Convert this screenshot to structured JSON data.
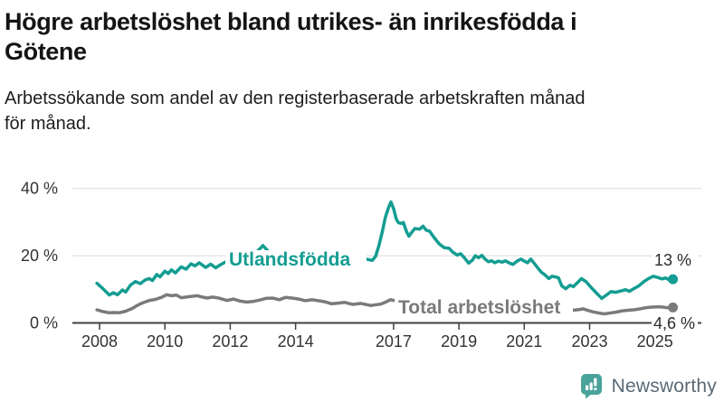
{
  "header": {
    "title_lines": [
      "Högre arbetslöshet bland utrikes- än inrikesfödda i",
      "Götene"
    ],
    "subtitle_lines": [
      "Arbetssökande som andel av den registerbaserade arbetskraften månad",
      "för månad."
    ]
  },
  "colors": {
    "foreign_line": "#149d92",
    "total_line": "#7a7a7a",
    "axis": "#404040",
    "grid": "#d9d9d9",
    "tick_label": "#333333",
    "value_label": "#2b2b2b",
    "logo_teal": "#4aa39b",
    "brand_text": "#596a76"
  },
  "chart_data": {
    "type": "line",
    "title": "Högre arbetslöshet bland utrikes- än inrikesfödda i Götene",
    "subtitle": "Arbetssökande som andel av den registerbaserade arbetskraften månad för månad.",
    "xlabel": "",
    "ylabel": "",
    "y_unit": "percent",
    "x_unit": "year (decimal = monthly)",
    "ylim": [
      0,
      40
    ],
    "xlim": [
      2007.9,
      2025.7
    ],
    "grid": "horizontal",
    "legend_position": "inline-labels",
    "y_ticks": [
      {
        "value": 0,
        "label": "0 %"
      },
      {
        "value": 20,
        "label": "20 %"
      },
      {
        "value": 40,
        "label": "40 %"
      }
    ],
    "x_ticks": [
      {
        "year": 2008,
        "label": "2008"
      },
      {
        "year": 2010,
        "label": "2010"
      },
      {
        "year": 2012,
        "label": "2012"
      },
      {
        "year": 2014,
        "label": "2014"
      },
      {
        "year": 2017,
        "label": "2017"
      },
      {
        "year": 2019,
        "label": "2019"
      },
      {
        "year": 2021,
        "label": "2021"
      },
      {
        "year": 2023,
        "label": "2023"
      },
      {
        "year": 2025,
        "label": "2025"
      }
    ],
    "series": [
      {
        "name": "Utlandsfödda",
        "color": "#149d92",
        "end_label": "13 %",
        "last_value": 13,
        "points": [
          [
            2007.92,
            11.8
          ],
          [
            2008.08,
            10.4
          ],
          [
            2008.3,
            8.3
          ],
          [
            2008.42,
            9.0
          ],
          [
            2008.55,
            8.4
          ],
          [
            2008.7,
            9.8
          ],
          [
            2008.8,
            9.2
          ],
          [
            2008.95,
            11.3
          ],
          [
            2009.1,
            12.3
          ],
          [
            2009.25,
            11.7
          ],
          [
            2009.4,
            12.8
          ],
          [
            2009.52,
            13.2
          ],
          [
            2009.62,
            12.6
          ],
          [
            2009.75,
            14.4
          ],
          [
            2009.85,
            13.7
          ],
          [
            2010.0,
            15.4
          ],
          [
            2010.1,
            14.7
          ],
          [
            2010.2,
            15.8
          ],
          [
            2010.32,
            14.9
          ],
          [
            2010.5,
            16.7
          ],
          [
            2010.65,
            16.0
          ],
          [
            2010.8,
            17.6
          ],
          [
            2010.92,
            17.0
          ],
          [
            2011.05,
            17.9
          ],
          [
            2011.25,
            16.5
          ],
          [
            2011.4,
            17.5
          ],
          [
            2011.55,
            16.4
          ],
          [
            2011.7,
            17.3
          ],
          [
            2011.9,
            18.4
          ],
          [
            2012.05,
            17.6
          ],
          [
            2012.25,
            18.5
          ],
          [
            2012.45,
            18.0
          ],
          [
            2012.6,
            19.0
          ],
          [
            2012.8,
            21.0
          ],
          [
            2013.0,
            23.0
          ],
          [
            2013.2,
            21.0
          ],
          [
            2013.4,
            19.5
          ],
          [
            2013.6,
            18.5
          ],
          [
            2013.8,
            18.0
          ],
          [
            2014.0,
            18.3
          ],
          [
            2014.25,
            17.8
          ],
          [
            2014.5,
            18.2
          ],
          [
            2014.75,
            17.6
          ],
          [
            2015.0,
            18.0
          ],
          [
            2015.3,
            18.4
          ],
          [
            2015.6,
            18.1
          ],
          [
            2015.9,
            18.8
          ],
          [
            2016.08,
            19.4
          ],
          [
            2016.2,
            18.9
          ],
          [
            2016.35,
            18.6
          ],
          [
            2016.45,
            19.8
          ],
          [
            2016.55,
            23.0
          ],
          [
            2016.65,
            27.0
          ],
          [
            2016.75,
            31.5
          ],
          [
            2016.85,
            34.5
          ],
          [
            2016.92,
            36.0
          ],
          [
            2017.0,
            34.0
          ],
          [
            2017.08,
            31.0
          ],
          [
            2017.15,
            29.8
          ],
          [
            2017.25,
            29.6
          ],
          [
            2017.3,
            29.9
          ],
          [
            2017.4,
            27.1
          ],
          [
            2017.47,
            25.8
          ],
          [
            2017.55,
            26.9
          ],
          [
            2017.65,
            28.1
          ],
          [
            2017.8,
            27.9
          ],
          [
            2017.9,
            28.8
          ],
          [
            2018.0,
            27.6
          ],
          [
            2018.1,
            27.3
          ],
          [
            2018.25,
            25.3
          ],
          [
            2018.4,
            23.5
          ],
          [
            2018.55,
            22.4
          ],
          [
            2018.7,
            22.2
          ],
          [
            2018.82,
            21.0
          ],
          [
            2018.95,
            20.2
          ],
          [
            2019.05,
            20.6
          ],
          [
            2019.15,
            19.6
          ],
          [
            2019.3,
            17.8
          ],
          [
            2019.42,
            18.8
          ],
          [
            2019.5,
            20.0
          ],
          [
            2019.6,
            19.4
          ],
          [
            2019.7,
            20.1
          ],
          [
            2019.8,
            19.0
          ],
          [
            2019.9,
            18.2
          ],
          [
            2020.0,
            18.5
          ],
          [
            2020.1,
            17.9
          ],
          [
            2020.2,
            18.4
          ],
          [
            2020.32,
            18.1
          ],
          [
            2020.42,
            18.5
          ],
          [
            2020.55,
            17.8
          ],
          [
            2020.65,
            17.4
          ],
          [
            2020.78,
            18.4
          ],
          [
            2020.9,
            19.0
          ],
          [
            2021.0,
            18.4
          ],
          [
            2021.1,
            17.9
          ],
          [
            2021.2,
            19.0
          ],
          [
            2021.3,
            17.8
          ],
          [
            2021.42,
            16.3
          ],
          [
            2021.52,
            15.1
          ],
          [
            2021.62,
            14.4
          ],
          [
            2021.75,
            13.2
          ],
          [
            2021.85,
            13.9
          ],
          [
            2021.95,
            13.7
          ],
          [
            2022.05,
            13.4
          ],
          [
            2022.15,
            11.0
          ],
          [
            2022.27,
            10.2
          ],
          [
            2022.4,
            11.2
          ],
          [
            2022.5,
            10.8
          ],
          [
            2022.62,
            11.9
          ],
          [
            2022.75,
            13.2
          ],
          [
            2022.9,
            12.2
          ],
          [
            2023.05,
            10.5
          ],
          [
            2023.2,
            9.0
          ],
          [
            2023.37,
            7.3
          ],
          [
            2023.5,
            8.2
          ],
          [
            2023.65,
            9.3
          ],
          [
            2023.8,
            9.1
          ],
          [
            2023.95,
            9.5
          ],
          [
            2024.1,
            9.9
          ],
          [
            2024.22,
            9.4
          ],
          [
            2024.35,
            10.2
          ],
          [
            2024.5,
            11.0
          ],
          [
            2024.65,
            12.2
          ],
          [
            2024.8,
            13.2
          ],
          [
            2024.95,
            13.9
          ],
          [
            2025.1,
            13.5
          ],
          [
            2025.22,
            13.1
          ],
          [
            2025.32,
            13.4
          ],
          [
            2025.42,
            12.9
          ],
          [
            2025.55,
            13.0
          ]
        ]
      },
      {
        "name": "Total arbetslöshet",
        "color": "#7a7a7a",
        "end_label": "4,6 %",
        "last_value": 4.6,
        "points": [
          [
            2007.92,
            3.9
          ],
          [
            2008.1,
            3.4
          ],
          [
            2008.3,
            3.0
          ],
          [
            2008.45,
            3.1
          ],
          [
            2008.6,
            3.0
          ],
          [
            2008.8,
            3.5
          ],
          [
            2009.0,
            4.3
          ],
          [
            2009.15,
            5.2
          ],
          [
            2009.3,
            5.9
          ],
          [
            2009.5,
            6.6
          ],
          [
            2009.7,
            7.0
          ],
          [
            2009.9,
            7.6
          ],
          [
            2010.05,
            8.4
          ],
          [
            2010.2,
            8.1
          ],
          [
            2010.35,
            8.3
          ],
          [
            2010.5,
            7.5
          ],
          [
            2010.65,
            7.7
          ],
          [
            2010.8,
            7.9
          ],
          [
            2011.0,
            8.1
          ],
          [
            2011.15,
            7.7
          ],
          [
            2011.3,
            7.4
          ],
          [
            2011.45,
            7.7
          ],
          [
            2011.6,
            7.5
          ],
          [
            2011.75,
            7.1
          ],
          [
            2011.9,
            6.7
          ],
          [
            2012.1,
            7.1
          ],
          [
            2012.3,
            6.5
          ],
          [
            2012.5,
            6.2
          ],
          [
            2012.7,
            6.4
          ],
          [
            2012.9,
            6.8
          ],
          [
            2013.1,
            7.3
          ],
          [
            2013.3,
            7.4
          ],
          [
            2013.5,
            6.9
          ],
          [
            2013.7,
            7.6
          ],
          [
            2013.9,
            7.4
          ],
          [
            2014.1,
            7.1
          ],
          [
            2014.3,
            6.6
          ],
          [
            2014.5,
            6.9
          ],
          [
            2014.7,
            6.6
          ],
          [
            2014.9,
            6.3
          ],
          [
            2015.1,
            5.7
          ],
          [
            2015.3,
            5.9
          ],
          [
            2015.5,
            6.1
          ],
          [
            2015.75,
            5.5
          ],
          [
            2016.0,
            5.8
          ],
          [
            2016.3,
            5.2
          ],
          [
            2016.6,
            5.6
          ],
          [
            2016.8,
            6.4
          ],
          [
            2016.9,
            6.9
          ],
          [
            2017.05,
            6.6
          ],
          [
            2017.3,
            6.3
          ],
          [
            2017.6,
            5.9
          ],
          [
            2018.0,
            5.6
          ],
          [
            2018.5,
            5.3
          ],
          [
            2019.0,
            5.1
          ],
          [
            2019.5,
            5.2
          ],
          [
            2020.0,
            5.8
          ],
          [
            2020.4,
            6.3
          ],
          [
            2020.8,
            6.0
          ],
          [
            2021.2,
            5.6
          ],
          [
            2021.6,
            5.1
          ],
          [
            2022.0,
            4.4
          ],
          [
            2022.3,
            4.2
          ],
          [
            2022.5,
            3.8
          ],
          [
            2022.7,
            4.0
          ],
          [
            2022.8,
            4.2
          ],
          [
            2022.95,
            3.7
          ],
          [
            2023.1,
            3.3
          ],
          [
            2023.25,
            3.0
          ],
          [
            2023.45,
            2.7
          ],
          [
            2023.6,
            2.9
          ],
          [
            2023.8,
            3.2
          ],
          [
            2024.0,
            3.6
          ],
          [
            2024.2,
            3.8
          ],
          [
            2024.35,
            3.9
          ],
          [
            2024.55,
            4.2
          ],
          [
            2024.7,
            4.5
          ],
          [
            2024.9,
            4.7
          ],
          [
            2025.1,
            4.8
          ],
          [
            2025.25,
            4.7
          ],
          [
            2025.4,
            4.5
          ],
          [
            2025.55,
            4.6
          ]
        ]
      }
    ]
  },
  "footer": {
    "brand": "Newsworthy",
    "logo_icon": "bar-chart-speech-bubble"
  }
}
